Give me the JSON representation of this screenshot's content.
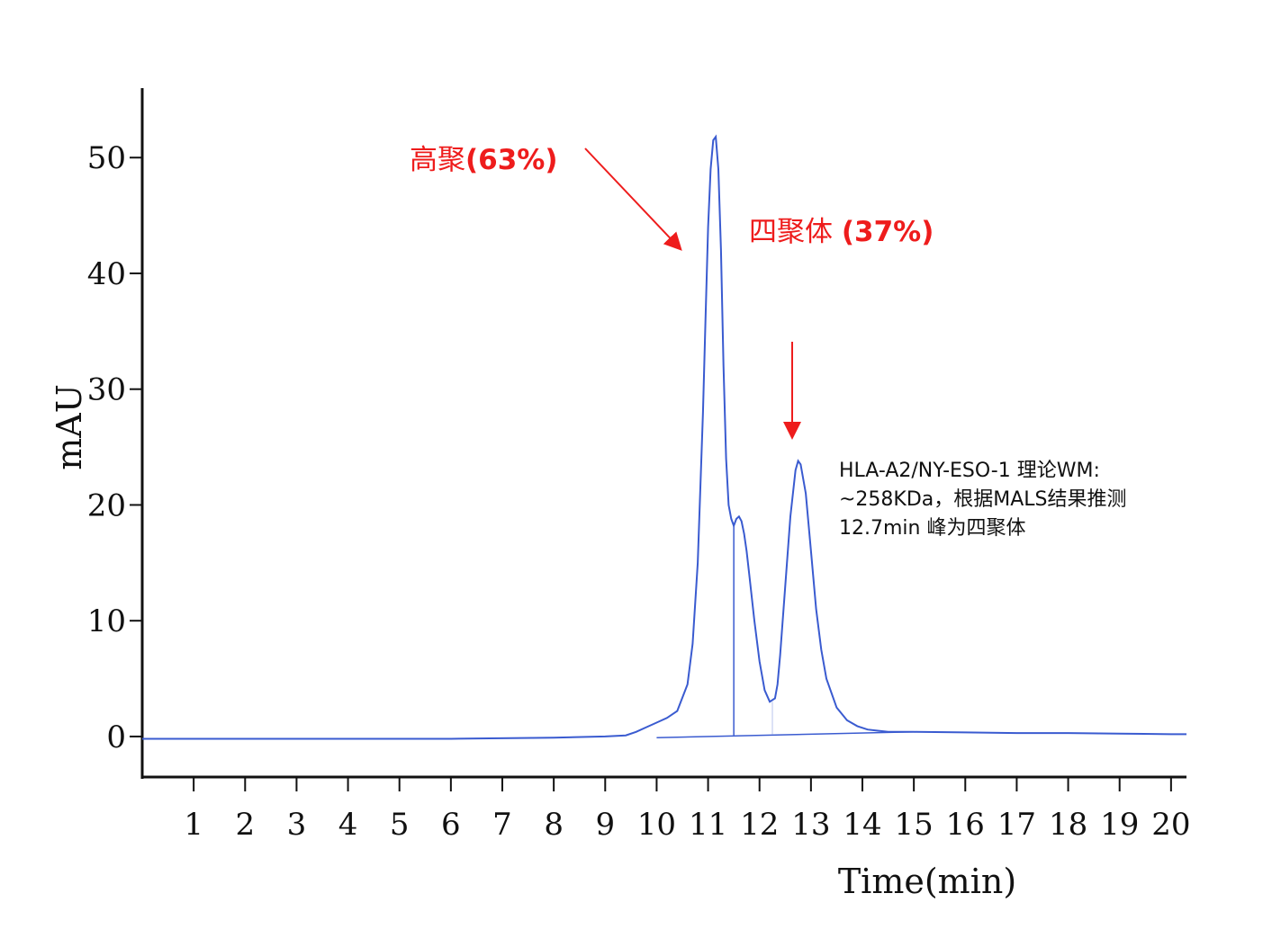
{
  "chart_data": {
    "type": "line",
    "title": "",
    "xlabel": "Time(min)",
    "ylabel": "mAU",
    "xlim": [
      0,
      20.3
    ],
    "ylim": [
      -3.5,
      56
    ],
    "xticks": [
      1,
      2,
      3,
      4,
      5,
      6,
      7,
      8,
      9,
      10,
      11,
      12,
      13,
      14,
      15,
      16,
      17,
      18,
      19,
      20
    ],
    "yticks": [
      0,
      10,
      20,
      30,
      40,
      50
    ],
    "grid": false,
    "series": [
      {
        "color": "#3a5bd0",
        "x": [
          0,
          2,
          4,
          6,
          8,
          9,
          9.4,
          9.6,
          9.8,
          10.0,
          10.2,
          10.4,
          10.6,
          10.7,
          10.8,
          10.9,
          10.95,
          11.0,
          11.05,
          11.1,
          11.15,
          11.2,
          11.25,
          11.3,
          11.35,
          11.4,
          11.45,
          11.5,
          11.55,
          11.6,
          11.65,
          11.7,
          11.75,
          11.8,
          11.9,
          12.0,
          12.1,
          12.2,
          12.3,
          12.35,
          12.4,
          12.5,
          12.6,
          12.7,
          12.75,
          12.8,
          12.9,
          13.0,
          13.1,
          13.2,
          13.3,
          13.5,
          13.7,
          13.9,
          14.1,
          14.3,
          14.5,
          15,
          16,
          17,
          18,
          19,
          20,
          20.3
        ],
        "y": [
          -0.2,
          -0.2,
          -0.2,
          -0.2,
          -0.1,
          0.0,
          0.1,
          0.4,
          0.8,
          1.2,
          1.6,
          2.2,
          4.5,
          8.0,
          15.0,
          28.0,
          36.0,
          44.0,
          49.0,
          51.5,
          51.8,
          49.0,
          42.0,
          32.0,
          24.0,
          20.0,
          18.8,
          18.2,
          18.8,
          19.0,
          18.6,
          17.5,
          16.0,
          14.0,
          10.0,
          6.5,
          4.0,
          3.0,
          3.3,
          4.5,
          7.0,
          13.0,
          19.0,
          23.0,
          23.8,
          23.5,
          21.0,
          16.0,
          11.0,
          7.5,
          5.0,
          2.5,
          1.4,
          0.9,
          0.6,
          0.5,
          0.4,
          0.4,
          0.35,
          0.3,
          0.3,
          0.25,
          0.2,
          0.2
        ]
      }
    ],
    "annotations": [
      {
        "text_plain": "高聚",
        "text_bold": "(63%)"
      },
      {
        "text_plain": "四聚体 ",
        "text_bold": "(37%)"
      }
    ],
    "note_lines": [
      "HLA-A2/NY-ESO-1 理论WM:",
      "~258KDa，根据MALS结果推测",
      "12.7min 峰为四聚体"
    ]
  }
}
